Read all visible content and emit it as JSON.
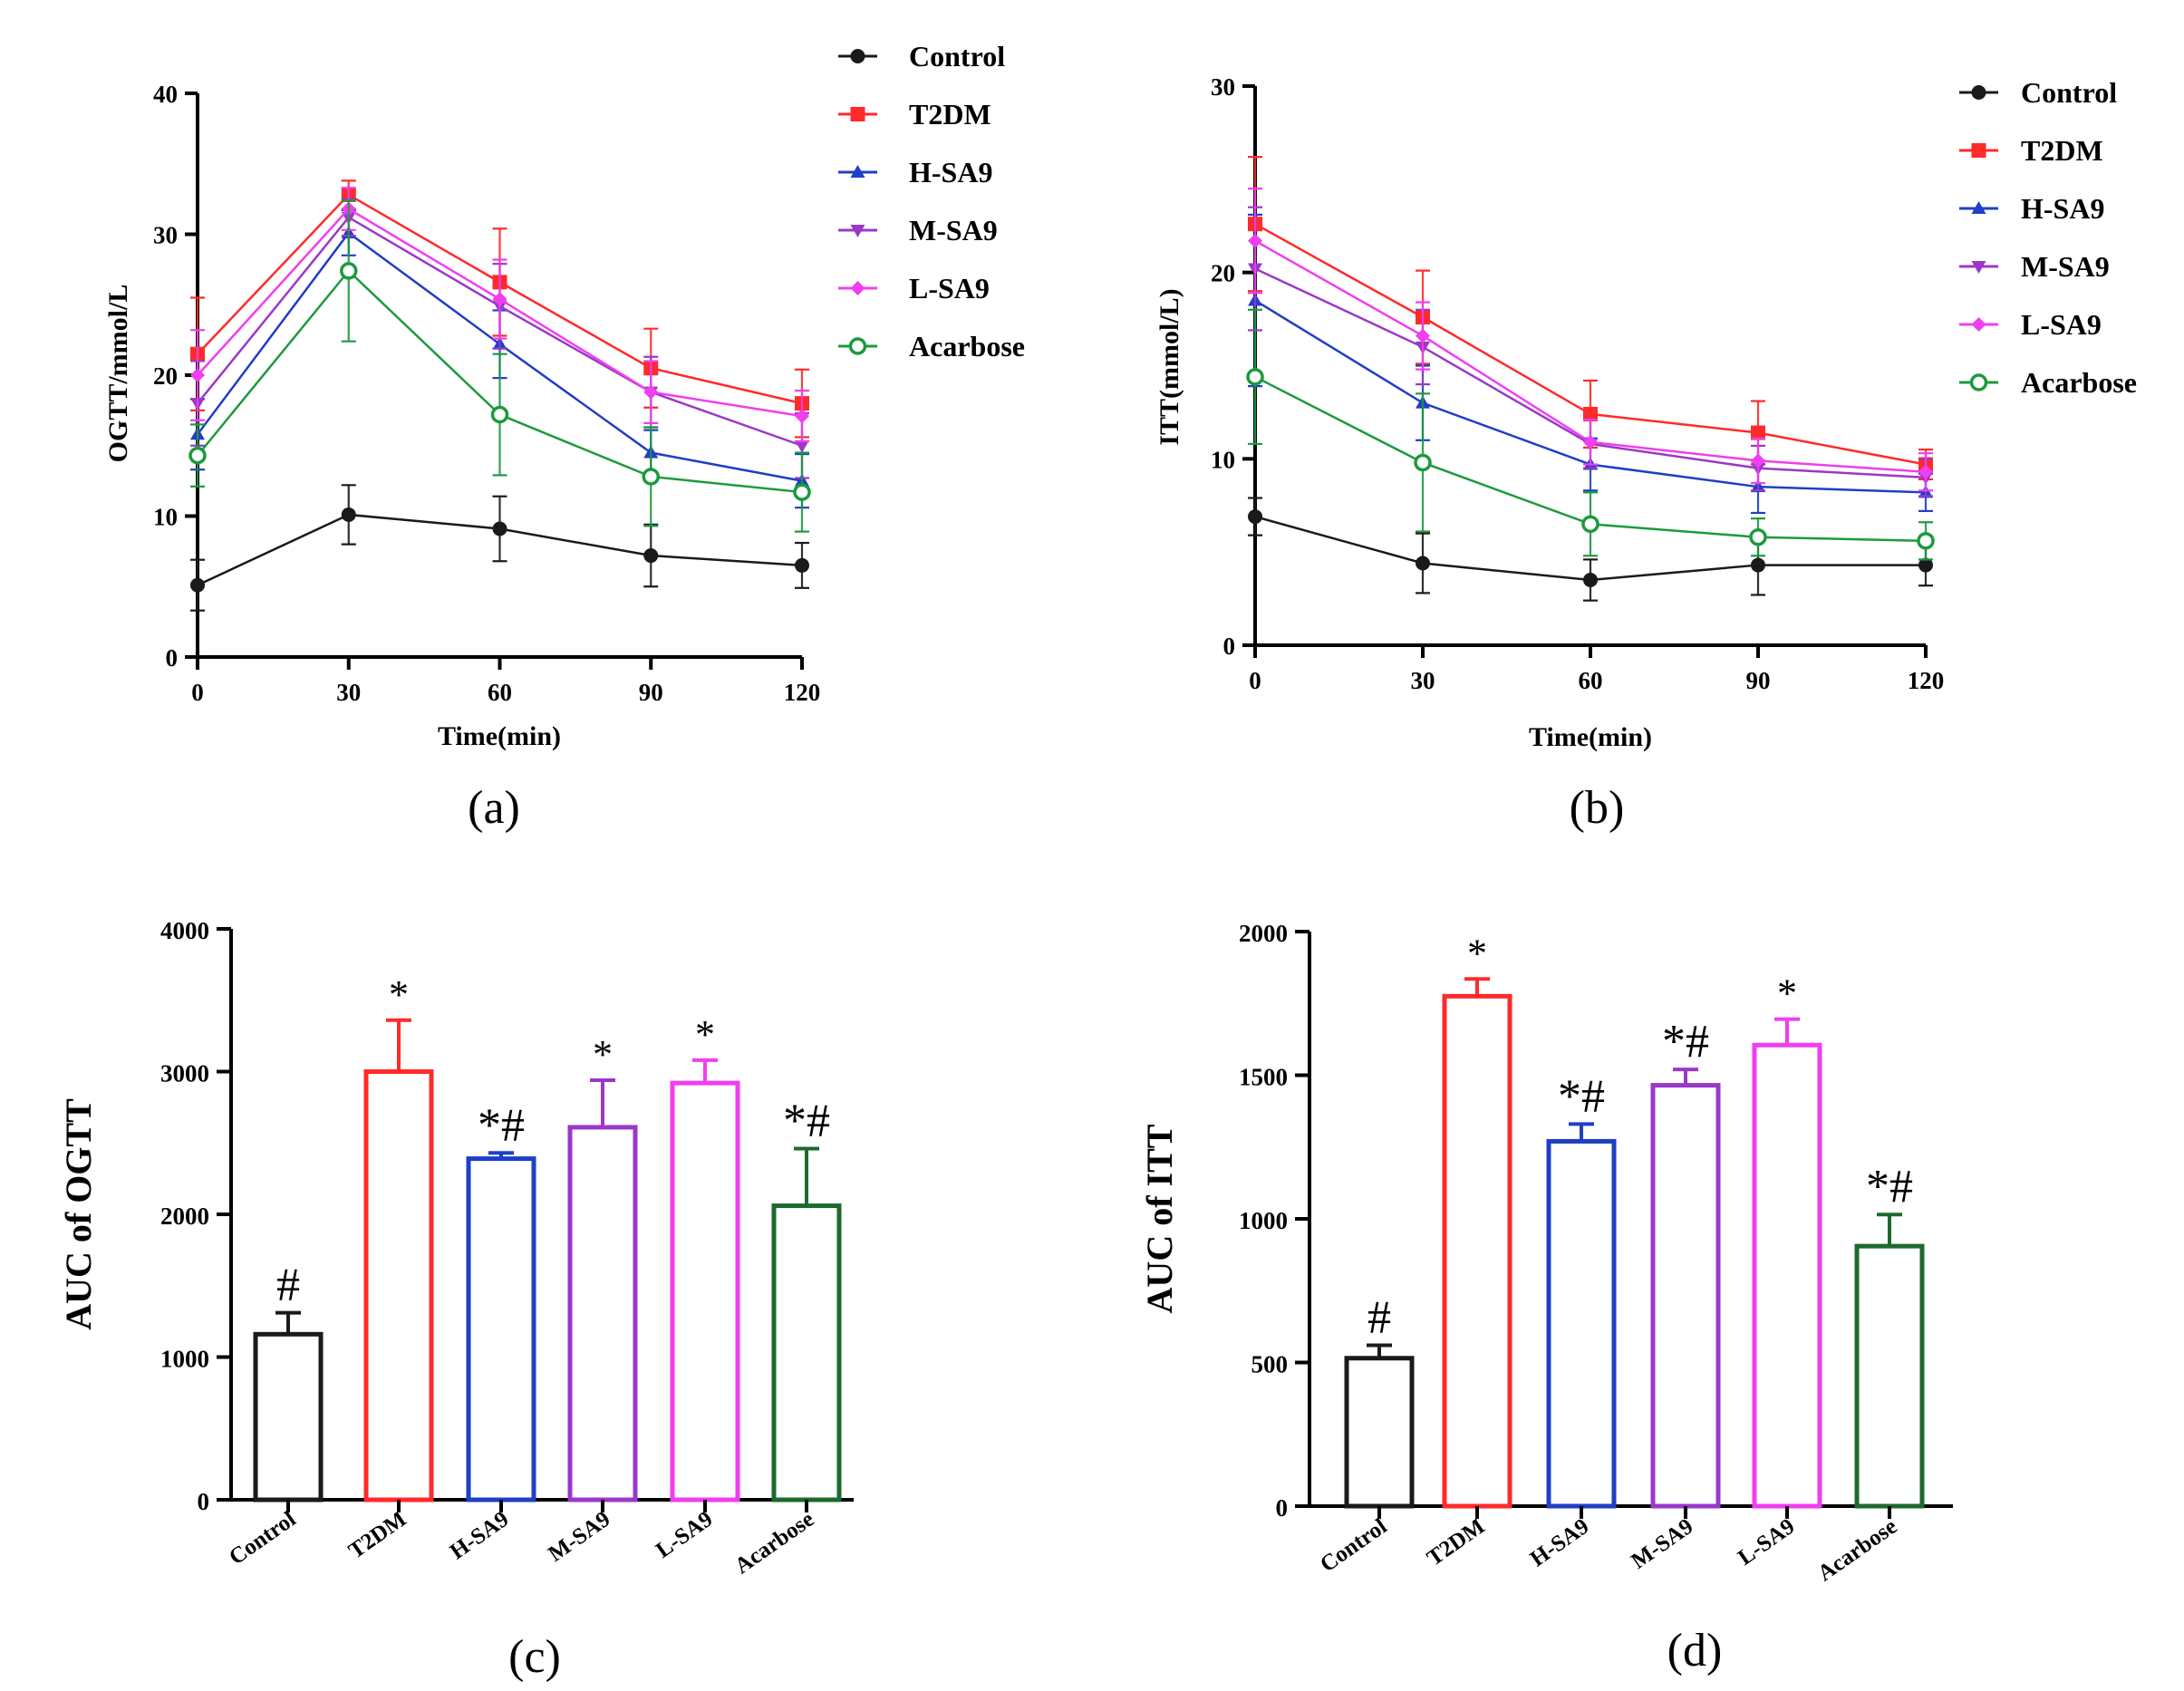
{
  "colors": {
    "Control": "#1a1a1a",
    "T2DM": "#ff2a2a",
    "H-SA9": "#1f3fc6",
    "M-SA9": "#9b38c9",
    "L-SA9": "#f03ef0",
    "Acarbose": "#1c9a3c",
    "Acarbose_bar": "#1d6a2c"
  },
  "chart_data": [
    {
      "panel": "(a)",
      "type": "line",
      "xlabel": "Time(min)",
      "ylabel": "OGTT/mmol/L",
      "x": [
        0,
        30,
        60,
        90,
        120
      ],
      "ylim": [
        0,
        40
      ],
      "yticks": [
        0,
        10,
        20,
        30,
        40
      ],
      "series": [
        {
          "name": "Control",
          "values": [
            5.1,
            10.1,
            9.1,
            7.2,
            6.5
          ],
          "err": [
            1.8,
            2.1,
            2.3,
            2.2,
            1.6
          ]
        },
        {
          "name": "T2DM",
          "values": [
            21.5,
            32.8,
            26.6,
            20.5,
            18.0
          ],
          "err": [
            4.0,
            1.0,
            3.8,
            2.8,
            2.4
          ]
        },
        {
          "name": "H-SA9",
          "values": [
            15.8,
            30.1,
            22.2,
            14.5,
            12.5
          ],
          "err": [
            2.5,
            1.6,
            2.4,
            1.6,
            1.9
          ]
        },
        {
          "name": "M-SA9",
          "values": [
            18.0,
            31.2,
            24.9,
            18.8,
            15.0
          ],
          "err": [
            3.0,
            1.3,
            3.0,
            2.5,
            2.3
          ]
        },
        {
          "name": "L-SA9",
          "values": [
            20.0,
            31.8,
            25.4,
            18.8,
            17.1
          ],
          "err": [
            3.2,
            1.5,
            2.8,
            2.2,
            1.8
          ]
        },
        {
          "name": "Acarbose",
          "values": [
            14.3,
            27.4,
            17.2,
            12.8,
            11.7
          ],
          "err": [
            2.2,
            5.0,
            4.3,
            3.5,
            2.8
          ]
        }
      ]
    },
    {
      "panel": "(b)",
      "type": "line",
      "xlabel": "Time(min)",
      "ylabel": "ITT(mmol/L)",
      "x": [
        0,
        30,
        60,
        90,
        120
      ],
      "ylim": [
        0,
        30
      ],
      "yticks": [
        0,
        10,
        20,
        30
      ],
      "series": [
        {
          "name": "Control",
          "values": [
            6.9,
            4.4,
            3.5,
            4.3,
            4.3
          ],
          "err": [
            1.0,
            1.6,
            1.1,
            1.6,
            1.1
          ]
        },
        {
          "name": "T2DM",
          "values": [
            22.6,
            17.6,
            12.4,
            11.4,
            9.7
          ],
          "err": [
            3.6,
            2.5,
            1.8,
            1.7,
            0.8
          ]
        },
        {
          "name": "H-SA9",
          "values": [
            18.5,
            13.0,
            9.7,
            8.5,
            8.2
          ],
          "err": [
            4.6,
            2.0,
            1.4,
            1.4,
            1.0
          ]
        },
        {
          "name": "M-SA9",
          "values": [
            20.2,
            16.0,
            10.8,
            9.5,
            9.0
          ],
          "err": [
            3.3,
            2.0,
            1.3,
            1.2,
            1.0
          ]
        },
        {
          "name": "L-SA9",
          "values": [
            21.7,
            16.6,
            10.9,
            9.9,
            9.3
          ],
          "err": [
            2.8,
            1.8,
            1.2,
            1.2,
            1.0
          ]
        },
        {
          "name": "Acarbose",
          "values": [
            14.4,
            9.8,
            6.5,
            5.8,
            5.6
          ],
          "err": [
            3.6,
            3.7,
            1.7,
            1.0,
            1.0
          ]
        }
      ]
    },
    {
      "panel": "(c)",
      "type": "bar",
      "ylabel": "AUC of OGTT",
      "categories": [
        "Control",
        "T2DM",
        "H-SA9",
        "M-SA9",
        "L-SA9",
        "Acarbose"
      ],
      "values": [
        1160,
        3000,
        2390,
        2610,
        2920,
        2060
      ],
      "err": [
        150,
        360,
        40,
        330,
        160,
        400
      ],
      "labels": [
        "#",
        "*",
        "*#",
        "*",
        "*",
        "*#"
      ],
      "ylim": [
        0,
        4000
      ],
      "yticks": [
        0,
        1000,
        2000,
        3000,
        4000
      ]
    },
    {
      "panel": "(d)",
      "type": "bar",
      "ylabel": "AUC of ITT",
      "categories": [
        "Control",
        "T2DM",
        "H-SA9",
        "M-SA9",
        "L-SA9",
        "Acarbose"
      ],
      "values": [
        515,
        1775,
        1270,
        1465,
        1605,
        905
      ],
      "err": [
        45,
        60,
        60,
        55,
        90,
        110
      ],
      "labels": [
        "#",
        "*",
        "*#",
        "*#",
        "*",
        "*#"
      ],
      "ylim": [
        0,
        2000
      ],
      "yticks": [
        0,
        500,
        1000,
        1500,
        2000
      ]
    }
  ]
}
